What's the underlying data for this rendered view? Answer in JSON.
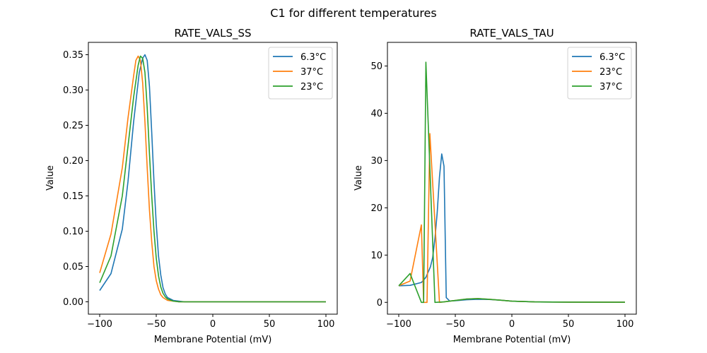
{
  "figure": {
    "suptitle": "C1 for different temperatures"
  },
  "colors": {
    "c6_3": "#1f77b4",
    "c23_right": "#ff7f0e",
    "c37_right": "#2ca02c",
    "c37_left": "#ff7f0e",
    "c23_left": "#2ca02c"
  },
  "chart_data": [
    {
      "type": "line",
      "title": "RATE_VALS_SS",
      "xlabel": "Membrane Potential (mV)",
      "ylabel": "Value",
      "xlim": [
        -110,
        110
      ],
      "ylim": [
        -0.0175,
        0.3675
      ],
      "xticks": [
        -100,
        -50,
        0,
        50,
        100
      ],
      "xtick_labels": [
        "−100",
        "−50",
        "0",
        "50",
        "100"
      ],
      "yticks": [
        0,
        0.05,
        0.1,
        0.15,
        0.2,
        0.25,
        0.3,
        0.35
      ],
      "ytick_labels": [
        "0.00",
        "0.05",
        "0.10",
        "0.15",
        "0.20",
        "0.25",
        "0.30",
        "0.35"
      ],
      "legend_position": "top-right",
      "grid": false,
      "series": [
        {
          "name": "6.3°C",
          "color": "#1f77b4",
          "x": [
            -100,
            -90,
            -80,
            -75,
            -70,
            -65,
            -62,
            -60,
            -58,
            -56,
            -54,
            -52,
            -50,
            -48,
            -46,
            -44,
            -42,
            -40,
            -35,
            -30,
            -25,
            0,
            50,
            100
          ],
          "y": [
            0.016,
            0.04,
            0.103,
            0.17,
            0.255,
            0.325,
            0.345,
            0.35,
            0.342,
            0.305,
            0.24,
            0.17,
            0.11,
            0.065,
            0.038,
            0.02,
            0.011,
            0.006,
            0.002,
            0.001,
            0.0,
            0.0,
            0.0,
            0.0
          ]
        },
        {
          "name": "37°C",
          "color": "#ff7f0e",
          "x": [
            -100,
            -90,
            -80,
            -75,
            -70,
            -68,
            -66,
            -64,
            -62,
            -60,
            -58,
            -56,
            -54,
            -52,
            -50,
            -48,
            -46,
            -44,
            -40,
            -35,
            -30,
            0,
            50,
            100
          ],
          "y": [
            0.041,
            0.096,
            0.19,
            0.26,
            0.32,
            0.342,
            0.348,
            0.342,
            0.31,
            0.255,
            0.19,
            0.13,
            0.085,
            0.05,
            0.03,
            0.018,
            0.01,
            0.006,
            0.002,
            0.001,
            0.0,
            0.0,
            0.0,
            0.0
          ]
        },
        {
          "name": "23°C",
          "color": "#2ca02c",
          "x": [
            -100,
            -90,
            -80,
            -75,
            -70,
            -66,
            -64,
            -62,
            -60,
            -58,
            -56,
            -54,
            -52,
            -50,
            -48,
            -46,
            -44,
            -42,
            -40,
            -35,
            -30,
            0,
            50,
            100
          ],
          "y": [
            0.027,
            0.065,
            0.15,
            0.22,
            0.29,
            0.335,
            0.348,
            0.345,
            0.325,
            0.275,
            0.21,
            0.15,
            0.1,
            0.062,
            0.037,
            0.021,
            0.012,
            0.007,
            0.004,
            0.001,
            0.0,
            0.0,
            0.0,
            0.0
          ]
        }
      ]
    },
    {
      "type": "line",
      "title": "RATE_VALS_TAU",
      "xlabel": "Membrane Potential (mV)",
      "ylabel": "Value",
      "xlim": [
        -110,
        110
      ],
      "ylim": [
        -2.5,
        55.0
      ],
      "xticks": [
        -100,
        -50,
        0,
        50,
        100
      ],
      "xtick_labels": [
        "−100",
        "−50",
        "0",
        "50",
        "100"
      ],
      "yticks": [
        0,
        10,
        20,
        30,
        40,
        50
      ],
      "ytick_labels": [
        "0",
        "10",
        "20",
        "30",
        "40",
        "50"
      ],
      "legend_position": "top-right",
      "grid": false,
      "series": [
        {
          "name": "6.3°C",
          "color": "#1f77b4",
          "x": [
            -100,
            -90,
            -80,
            -76,
            -72,
            -70,
            -68,
            -66,
            -64,
            -62,
            -60,
            -58,
            -55,
            -50,
            -40,
            -30,
            -20,
            -10,
            0,
            20,
            50,
            100
          ],
          "y": [
            3.5,
            3.6,
            4.2,
            5.3,
            7.5,
            9.5,
            13.5,
            19.0,
            26.5,
            31.4,
            28.8,
            1.0,
            0.3,
            0.35,
            0.55,
            0.65,
            0.6,
            0.45,
            0.25,
            0.1,
            0.05,
            0.02
          ]
        },
        {
          "name": "23°C",
          "color": "#ff7f0e",
          "x": [
            -100,
            -90,
            -80,
            -78,
            -75,
            -72.5,
            -64,
            -60,
            -50,
            -40,
            -30,
            -20,
            -10,
            0,
            20,
            50,
            100
          ],
          "y": [
            3.5,
            4.5,
            16.4,
            0.0,
            0.0,
            35.7,
            0.0,
            0.1,
            0.4,
            0.7,
            0.8,
            0.65,
            0.45,
            0.25,
            0.1,
            0.05,
            0.02
          ]
        },
        {
          "name": "37°C",
          "color": "#2ca02c",
          "x": [
            -100,
            -90,
            -80,
            -78,
            -76,
            -68,
            -60,
            -50,
            -40,
            -30,
            -20,
            -10,
            0,
            20,
            50,
            100
          ],
          "y": [
            3.5,
            6.1,
            0.0,
            0.0,
            50.8,
            0.0,
            0.1,
            0.4,
            0.7,
            0.8,
            0.65,
            0.45,
            0.25,
            0.1,
            0.05,
            0.02
          ]
        }
      ]
    }
  ]
}
